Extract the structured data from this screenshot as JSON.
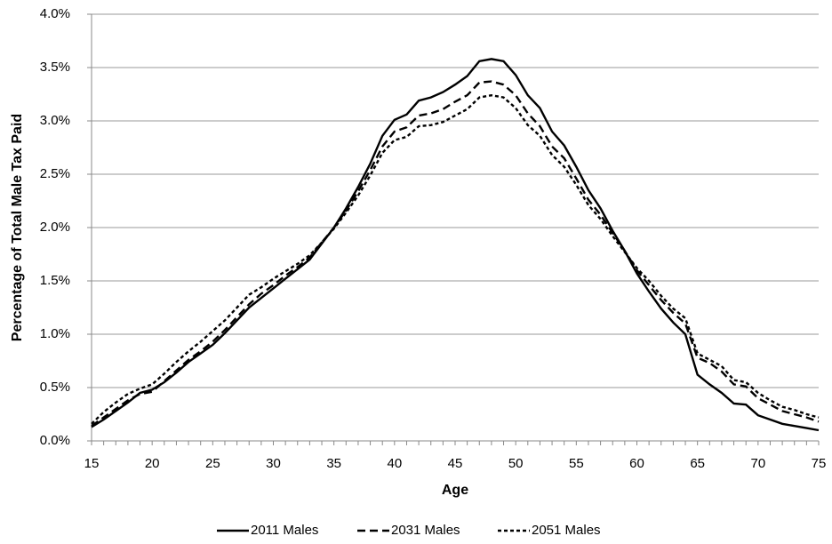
{
  "chart_data": {
    "type": "line",
    "x_label": "Age",
    "y_label": "Percentage of Total Male Tax Paid",
    "x": [
      15,
      16,
      17,
      18,
      19,
      20,
      21,
      22,
      23,
      24,
      25,
      26,
      27,
      28,
      29,
      30,
      31,
      32,
      33,
      34,
      35,
      36,
      37,
      38,
      39,
      40,
      41,
      42,
      43,
      44,
      45,
      46,
      47,
      48,
      49,
      50,
      51,
      52,
      53,
      54,
      55,
      56,
      57,
      58,
      59,
      60,
      61,
      62,
      63,
      64,
      65,
      66,
      67,
      68,
      69,
      70,
      71,
      72,
      73,
      74,
      75
    ],
    "xlim": [
      15,
      75
    ],
    "xticks": [
      15,
      20,
      25,
      30,
      35,
      40,
      45,
      50,
      55,
      60,
      65,
      70,
      75
    ],
    "ylim": [
      0,
      4
    ],
    "yticks": [
      {
        "value": 0,
        "label": "0.0%"
      },
      {
        "value": 0.5,
        "label": "0.5%"
      },
      {
        "value": 1,
        "label": "1.0%"
      },
      {
        "value": 1.5,
        "label": "1.5%"
      },
      {
        "value": 2,
        "label": "2.0%"
      },
      {
        "value": 2.5,
        "label": "2.5%"
      },
      {
        "value": 3,
        "label": "3.0%"
      },
      {
        "value": 3.5,
        "label": "3.5%"
      },
      {
        "value": 4,
        "label": "4.0%"
      }
    ],
    "grid": true,
    "legend": "bottom",
    "series": [
      {
        "name": "2011 Males",
        "color": "#000000",
        "dash": "solid",
        "values": [
          0.13,
          0.2,
          0.28,
          0.36,
          0.45,
          0.48,
          0.55,
          0.64,
          0.74,
          0.82,
          0.9,
          1.01,
          1.13,
          1.25,
          1.34,
          1.43,
          1.52,
          1.61,
          1.7,
          1.85,
          2.0,
          2.18,
          2.38,
          2.6,
          2.86,
          3.01,
          3.06,
          3.19,
          3.22,
          3.27,
          3.34,
          3.42,
          3.56,
          3.58,
          3.56,
          3.43,
          3.24,
          3.12,
          2.9,
          2.77,
          2.57,
          2.35,
          2.18,
          1.97,
          1.78,
          1.57,
          1.4,
          1.24,
          1.11,
          1.0,
          0.62,
          0.53,
          0.45,
          0.35,
          0.34,
          0.24,
          0.2,
          0.16,
          0.14,
          0.12,
          0.1
        ]
      },
      {
        "name": "2031 Males",
        "color": "#000000",
        "dash": "dashed",
        "values": [
          0.14,
          0.22,
          0.3,
          0.38,
          0.44,
          0.46,
          0.56,
          0.66,
          0.76,
          0.84,
          0.93,
          1.04,
          1.16,
          1.28,
          1.38,
          1.46,
          1.55,
          1.63,
          1.72,
          1.86,
          2.0,
          2.16,
          2.34,
          2.54,
          2.76,
          2.9,
          2.94,
          3.05,
          3.07,
          3.11,
          3.18,
          3.24,
          3.36,
          3.37,
          3.34,
          3.24,
          3.07,
          2.95,
          2.76,
          2.65,
          2.46,
          2.26,
          2.12,
          1.95,
          1.78,
          1.6,
          1.46,
          1.32,
          1.2,
          1.1,
          0.78,
          0.73,
          0.65,
          0.53,
          0.51,
          0.4,
          0.34,
          0.28,
          0.25,
          0.22,
          0.18
        ]
      },
      {
        "name": "2051 Males",
        "color": "#000000",
        "dash": "dotted",
        "values": [
          0.16,
          0.27,
          0.36,
          0.44,
          0.49,
          0.53,
          0.63,
          0.74,
          0.84,
          0.93,
          1.03,
          1.13,
          1.25,
          1.37,
          1.44,
          1.52,
          1.59,
          1.66,
          1.74,
          1.86,
          1.99,
          2.14,
          2.3,
          2.49,
          2.7,
          2.82,
          2.85,
          2.95,
          2.96,
          2.99,
          3.05,
          3.11,
          3.22,
          3.24,
          3.22,
          3.12,
          2.96,
          2.86,
          2.68,
          2.57,
          2.4,
          2.21,
          2.08,
          1.92,
          1.77,
          1.62,
          1.5,
          1.36,
          1.24,
          1.15,
          0.82,
          0.76,
          0.7,
          0.57,
          0.55,
          0.45,
          0.38,
          0.32,
          0.29,
          0.25,
          0.22
        ]
      }
    ]
  }
}
